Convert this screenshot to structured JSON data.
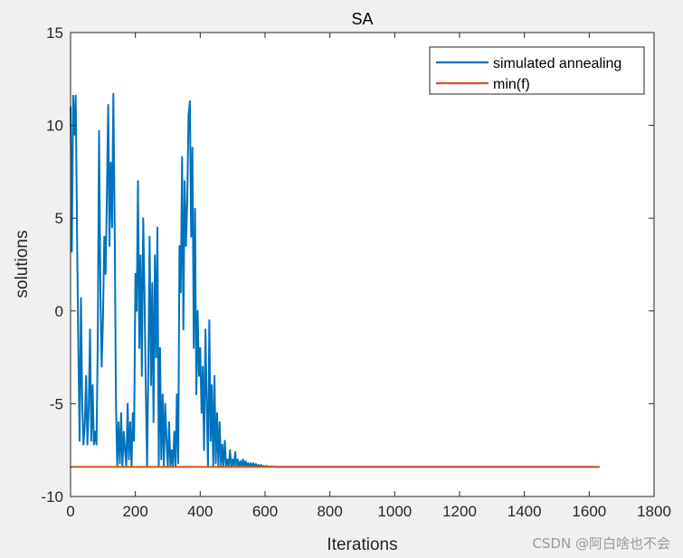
{
  "chart_data": {
    "type": "line",
    "title": "SA",
    "xlabel": "Iterations",
    "ylabel": "solutions",
    "xlim": [
      0,
      1800
    ],
    "ylim": [
      -10,
      15
    ],
    "xticks": [
      0,
      200,
      400,
      600,
      800,
      1000,
      1200,
      1400,
      1600,
      1800
    ],
    "yticks": [
      -10,
      -5,
      0,
      5,
      10,
      15
    ],
    "grid": false,
    "legend_position": "top-right",
    "series": [
      {
        "name": "simulated annealing",
        "color": "#0072BD",
        "points": [
          [
            0,
            11.0
          ],
          [
            4,
            3.2
          ],
          [
            8,
            11.6
          ],
          [
            12,
            9.5
          ],
          [
            16,
            11.6
          ],
          [
            20,
            4.0
          ],
          [
            24,
            -2.0
          ],
          [
            28,
            -7.0
          ],
          [
            32,
            0.7
          ],
          [
            36,
            -5.0
          ],
          [
            40,
            -7.2
          ],
          [
            44,
            -6.0
          ],
          [
            48,
            -3.5
          ],
          [
            52,
            -7.2
          ],
          [
            56,
            -5.2
          ],
          [
            60,
            -1.0
          ],
          [
            64,
            -7.0
          ],
          [
            68,
            -4.0
          ],
          [
            72,
            -7.2
          ],
          [
            76,
            -6.5
          ],
          [
            80,
            -7.2
          ],
          [
            84,
            -1.5
          ],
          [
            88,
            9.7
          ],
          [
            92,
            1.0
          ],
          [
            96,
            -3.0
          ],
          [
            100,
            -0.5
          ],
          [
            104,
            4.0
          ],
          [
            108,
            2.0
          ],
          [
            112,
            6.0
          ],
          [
            116,
            11.1
          ],
          [
            120,
            3.5
          ],
          [
            124,
            8.0
          ],
          [
            128,
            4.5
          ],
          [
            132,
            11.7
          ],
          [
            136,
            5.0
          ],
          [
            140,
            -5.0
          ],
          [
            144,
            -8.4
          ],
          [
            148,
            -6.0
          ],
          [
            152,
            -8.2
          ],
          [
            156,
            -5.5
          ],
          [
            160,
            -8.4
          ],
          [
            164,
            -6.5
          ],
          [
            168,
            -7.5
          ],
          [
            172,
            -8.4
          ],
          [
            176,
            -5.0
          ],
          [
            180,
            -8.0
          ],
          [
            184,
            -6.0
          ],
          [
            188,
            -8.4
          ],
          [
            192,
            -5.5
          ],
          [
            196,
            -7.0
          ],
          [
            200,
            2.0
          ],
          [
            204,
            0.0
          ],
          [
            208,
            7.0
          ],
          [
            212,
            -2.0
          ],
          [
            216,
            3.0
          ],
          [
            220,
            -3.5
          ],
          [
            224,
            5.0
          ],
          [
            228,
            1.0
          ],
          [
            232,
            -4.0
          ],
          [
            236,
            -8.4
          ],
          [
            240,
            -3.0
          ],
          [
            244,
            4.0
          ],
          [
            248,
            -4.0
          ],
          [
            252,
            1.5
          ],
          [
            256,
            -6.0
          ],
          [
            260,
            3.0
          ],
          [
            264,
            -2.5
          ],
          [
            268,
            4.5
          ],
          [
            272,
            -8.4
          ],
          [
            276,
            -2.0
          ],
          [
            280,
            -8.0
          ],
          [
            284,
            -4.5
          ],
          [
            288,
            -8.4
          ],
          [
            292,
            -5.0
          ],
          [
            296,
            -7.0
          ],
          [
            300,
            -8.4
          ],
          [
            304,
            -6.0
          ],
          [
            308,
            -8.4
          ],
          [
            312,
            -7.5
          ],
          [
            316,
            -8.4
          ],
          [
            320,
            -6.5
          ],
          [
            324,
            -8.4
          ],
          [
            328,
            -4.5
          ],
          [
            332,
            -8.2
          ],
          [
            336,
            3.5
          ],
          [
            340,
            1.0
          ],
          [
            344,
            8.3
          ],
          [
            348,
            -1.0
          ],
          [
            352,
            7.0
          ],
          [
            356,
            3.5
          ],
          [
            360,
            6.0
          ],
          [
            364,
            10.5
          ],
          [
            368,
            11.3
          ],
          [
            372,
            4.0
          ],
          [
            376,
            8.8
          ],
          [
            380,
            -2.0
          ],
          [
            384,
            5.5
          ],
          [
            388,
            -4.5
          ],
          [
            392,
            0.0
          ],
          [
            396,
            -3.5
          ],
          [
            400,
            -2.0
          ],
          [
            404,
            -5.5
          ],
          [
            408,
            -3.0
          ],
          [
            412,
            -7.5
          ],
          [
            416,
            -1.0
          ],
          [
            420,
            -5.0
          ],
          [
            424,
            -8.4
          ],
          [
            428,
            -0.5
          ],
          [
            432,
            -7.0
          ],
          [
            436,
            -4.0
          ],
          [
            440,
            -8.4
          ],
          [
            444,
            -3.5
          ],
          [
            448,
            -8.2
          ],
          [
            452,
            -5.5
          ],
          [
            456,
            -8.4
          ],
          [
            460,
            -6.0
          ],
          [
            464,
            -8.4
          ],
          [
            468,
            -7.2
          ],
          [
            472,
            -8.4
          ],
          [
            476,
            -7.0
          ],
          [
            480,
            -8.4
          ],
          [
            484,
            -8.0
          ],
          [
            488,
            -8.4
          ],
          [
            492,
            -7.5
          ],
          [
            496,
            -8.4
          ],
          [
            500,
            -8.0
          ],
          [
            504,
            -8.4
          ],
          [
            508,
            -7.6
          ],
          [
            512,
            -8.4
          ],
          [
            516,
            -8.0
          ],
          [
            520,
            -8.4
          ],
          [
            524,
            -8.1
          ],
          [
            528,
            -8.4
          ],
          [
            532,
            -8.0
          ],
          [
            536,
            -8.4
          ],
          [
            540,
            -8.1
          ],
          [
            544,
            -8.4
          ],
          [
            548,
            -8.2
          ],
          [
            552,
            -8.4
          ],
          [
            556,
            -8.2
          ],
          [
            560,
            -8.4
          ],
          [
            564,
            -8.2
          ],
          [
            568,
            -8.4
          ],
          [
            572,
            -8.25
          ],
          [
            576,
            -8.4
          ],
          [
            580,
            -8.3
          ],
          [
            584,
            -8.4
          ],
          [
            588,
            -8.3
          ],
          [
            592,
            -8.4
          ],
          [
            596,
            -8.35
          ],
          [
            600,
            -8.4
          ],
          [
            605,
            -8.35
          ],
          [
            610,
            -8.4
          ],
          [
            620,
            -8.37
          ],
          [
            630,
            -8.4
          ],
          [
            640,
            -8.4
          ],
          [
            1630,
            -8.4
          ]
        ]
      },
      {
        "name": "min(f)",
        "color": "#D95319",
        "points": [
          [
            0,
            -8.4
          ],
          [
            1630,
            -8.4
          ]
        ]
      }
    ]
  },
  "watermark": "CSDN @阿白啥也不会"
}
